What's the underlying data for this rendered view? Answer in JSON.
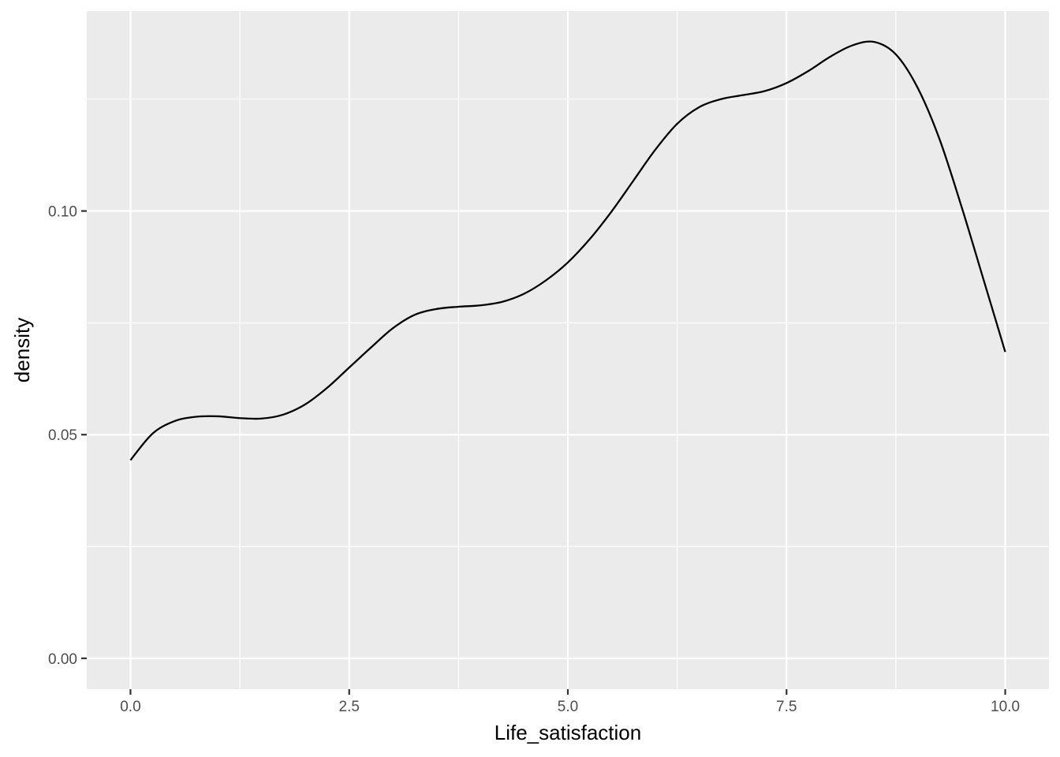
{
  "chart_data": {
    "type": "line",
    "title": "",
    "xlabel": "Life_satisfaction",
    "ylabel": "density",
    "xlim": [
      -0.5,
      10.5
    ],
    "ylim": [
      -0.0069,
      0.1447
    ],
    "x_ticks": [
      0,
      2.5,
      5,
      7.5,
      10
    ],
    "x_tick_labels": [
      "0.0",
      "2.5",
      "5.0",
      "7.5",
      "10.0"
    ],
    "y_ticks": [
      0,
      0.05,
      0.1
    ],
    "y_tick_labels": [
      "0.00",
      "0.05",
      "0.10"
    ],
    "grid": true,
    "legend": "none",
    "colors": {
      "panel": "#ebebeb",
      "grid": "#ffffff",
      "line": "#000000",
      "tick_text": "#4d4d4d",
      "tick_mark": "#333333"
    },
    "series": [
      {
        "x": [
          0,
          0.25,
          0.5,
          0.75,
          1.0,
          1.25,
          1.5,
          1.75,
          2.0,
          2.25,
          2.5,
          2.75,
          3.0,
          3.25,
          3.5,
          3.75,
          4.0,
          4.25,
          4.5,
          4.75,
          5.0,
          5.25,
          5.5,
          5.75,
          6.0,
          6.25,
          6.5,
          6.75,
          7.0,
          7.25,
          7.5,
          7.75,
          8.0,
          8.25,
          8.5,
          8.75,
          9.0,
          9.25,
          9.5,
          9.75,
          10.0
        ],
        "y": [
          0.0443,
          0.0502,
          0.053,
          0.054,
          0.0541,
          0.0537,
          0.0536,
          0.0545,
          0.0568,
          0.0605,
          0.065,
          0.0695,
          0.0738,
          0.0768,
          0.0781,
          0.0786,
          0.0789,
          0.0797,
          0.0815,
          0.0845,
          0.0885,
          0.0937,
          0.0999,
          0.1068,
          0.1137,
          0.1195,
          0.1232,
          0.125,
          0.1259,
          0.1268,
          0.1286,
          0.1313,
          0.1345,
          0.137,
          0.1378,
          0.135,
          0.1275,
          0.116,
          0.101,
          0.0848,
          0.0685
        ]
      }
    ]
  }
}
